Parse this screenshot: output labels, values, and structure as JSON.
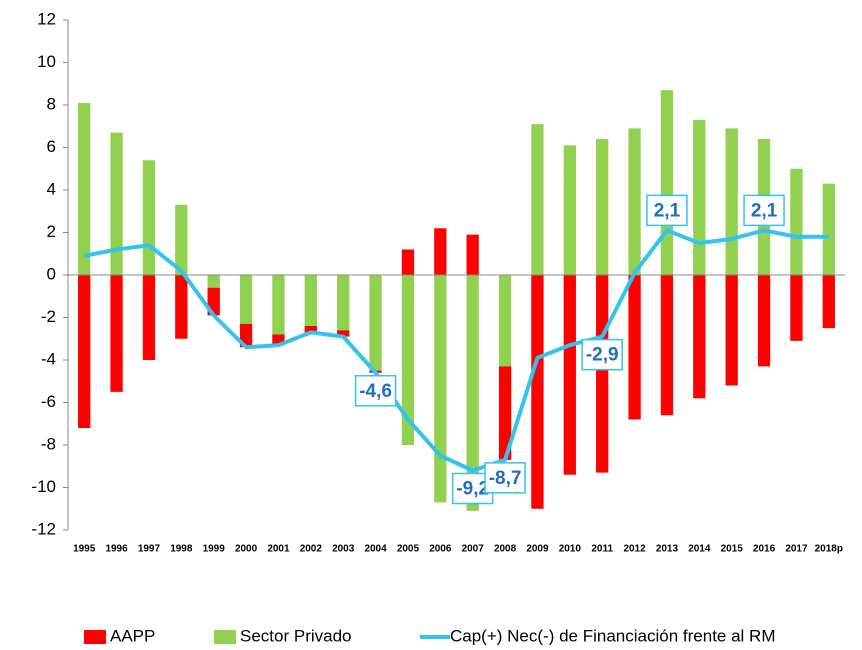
{
  "chart_data": {
    "type": "bar",
    "stacked": true,
    "grid": false,
    "categories": [
      "1995",
      "1996",
      "1997",
      "1998",
      "1999",
      "2000",
      "2001",
      "2002",
      "2003",
      "2004",
      "2005",
      "2006",
      "2007",
      "2008",
      "2009",
      "2010",
      "2011",
      "2012",
      "2013",
      "2014",
      "2015",
      "2016",
      "2017",
      "2018p"
    ],
    "series": [
      {
        "name": "AAPP",
        "color": "#ff0000",
        "values": [
          -7.2,
          -5.5,
          -4.0,
          -3.0,
          -1.3,
          -1.1,
          -0.5,
          -0.3,
          -0.3,
          -0.1,
          1.2,
          2.2,
          1.9,
          -4.4,
          -11.0,
          -9.4,
          -9.3,
          -6.8,
          -6.6,
          -5.8,
          -5.2,
          -4.3,
          -3.1,
          -2.5
        ]
      },
      {
        "name": "Sector Privado",
        "color": "#92d050",
        "values": [
          8.1,
          6.7,
          5.4,
          3.3,
          -0.6,
          -2.3,
          -2.8,
          -2.4,
          -2.6,
          -4.5,
          -8.0,
          -10.7,
          -11.1,
          -4.3,
          7.1,
          6.1,
          6.4,
          6.9,
          8.7,
          7.3,
          6.9,
          6.4,
          5.0,
          4.3
        ]
      },
      {
        "name": "Cap(+) Nec(-) de Financiación frente al RM",
        "color": "#33c3f0",
        "type": "line",
        "values": [
          0.9,
          1.2,
          1.4,
          0.2,
          -1.9,
          -3.4,
          -3.3,
          -2.7,
          -2.9,
          -4.6,
          -6.8,
          -8.5,
          -9.2,
          -8.7,
          -3.9,
          -3.3,
          -2.9,
          0.1,
          2.1,
          1.5,
          1.7,
          2.1,
          1.8,
          1.8
        ],
        "value_labels": [
          null,
          null,
          null,
          null,
          null,
          null,
          null,
          null,
          null,
          "-4,6",
          null,
          null,
          "-9,2",
          "-8,7",
          null,
          null,
          "-2,9",
          null,
          "2,1",
          null,
          null,
          "2,1",
          null,
          null
        ]
      }
    ],
    "ylim": [
      -12,
      12
    ],
    "yticks": [
      12,
      10,
      8,
      6,
      4,
      2,
      0,
      -2,
      -4,
      -6,
      -8,
      -10,
      -12
    ]
  }
}
